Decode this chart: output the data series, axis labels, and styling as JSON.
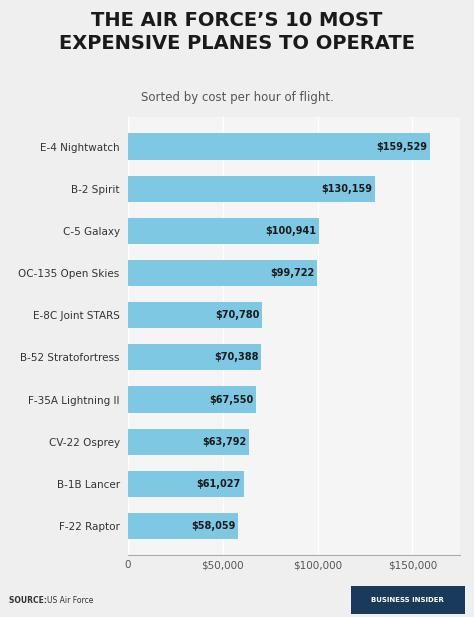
{
  "title": "THE AIR FORCE’S 10 MOST\nEXPENSIVE PLANES TO OPERATE",
  "subtitle": "Sorted by cost per hour of flight.",
  "categories": [
    "F-22 Raptor",
    "B-1B Lancer",
    "CV-22 Osprey",
    "F-35A Lightning II",
    "B-52 Stratofortress",
    "E-8C Joint STARS",
    "OC-135 Open Skies",
    "C-5 Galaxy",
    "B-2 Spirit",
    "E-4 Nightwatch"
  ],
  "values": [
    58059,
    61027,
    63792,
    67550,
    70388,
    70780,
    99722,
    100941,
    130159,
    159529
  ],
  "bar_color": "#7ec8e3",
  "bg_color": "#efefef",
  "plot_bg_color": "#f5f5f5",
  "title_color": "#1a1a1a",
  "label_color": "#333333",
  "value_color": "#1a1a1a",
  "source_text": "SOURCE: US Air Force",
  "footer_bg": "#cccccc",
  "footer_brand": "BUSINESS INSIDER",
  "footer_brand_bg": "#1a3a5c",
  "footer_brand_color": "#ffffff",
  "xlim": [
    0,
    175000
  ],
  "xticks": [
    0,
    50000,
    100000,
    150000
  ],
  "xtick_labels": [
    "0",
    "$50,000",
    "$100,000",
    "$150,000"
  ]
}
